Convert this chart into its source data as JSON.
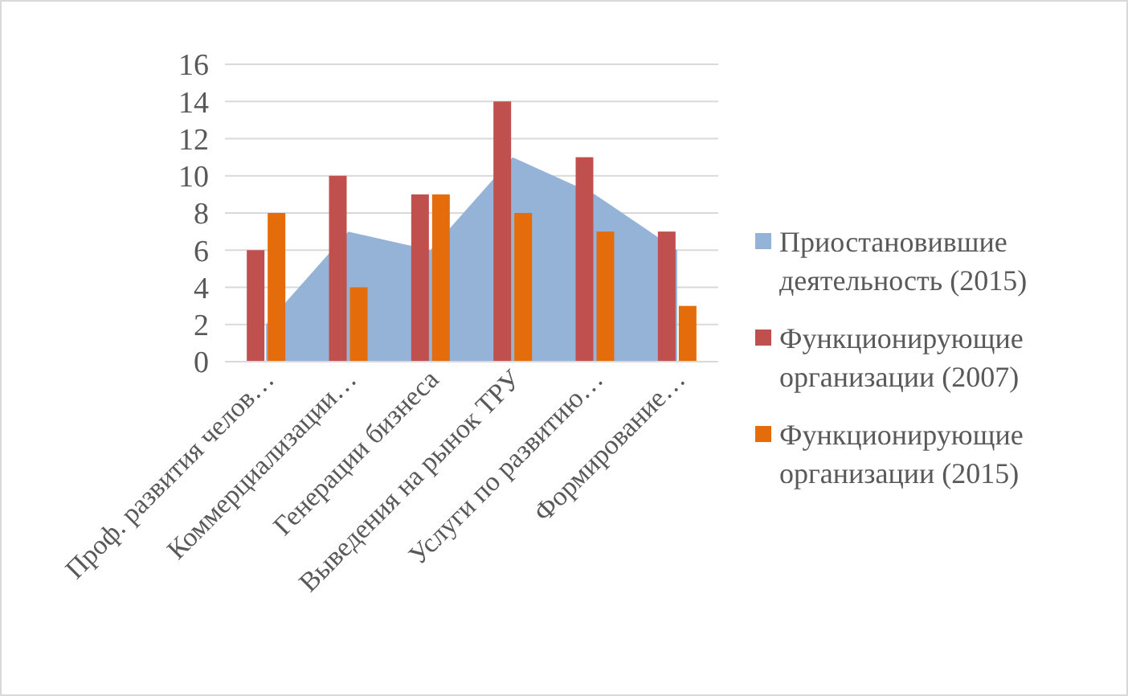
{
  "chart_data": {
    "type": "bar",
    "categories": [
      "Проф. развития челов…",
      "Коммерциализации…",
      "Генерации бизнеса",
      "Выведения на рынок ТРУ",
      "Услуги по развитию…",
      "Формирование…"
    ],
    "series": [
      {
        "name": "Приостановившие деятельность (2015)",
        "type": "area",
        "color": "#95b3d7",
        "values": [
          2,
          7,
          6,
          11,
          9,
          6
        ]
      },
      {
        "name": "Функционирующие организации (2007)",
        "color": "#c0504d",
        "values": [
          6,
          10,
          9,
          14,
          11,
          7
        ]
      },
      {
        "name": "Функционирующие организации (2015)",
        "color": "#e46c0a",
        "values": [
          8,
          4,
          9,
          8,
          7,
          3
        ]
      }
    ],
    "ylim": [
      0,
      16
    ],
    "yticks": [
      0,
      2,
      4,
      6,
      8,
      10,
      12,
      14,
      16
    ],
    "grid": "y",
    "legend": "right"
  }
}
